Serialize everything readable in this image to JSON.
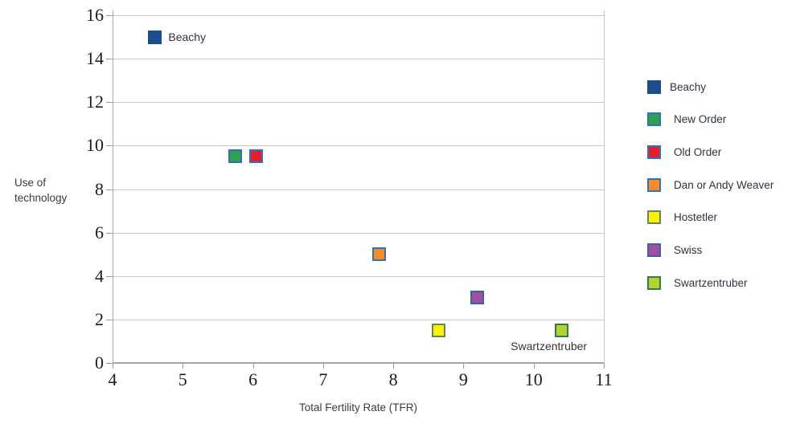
{
  "chart_data": {
    "type": "scatter",
    "title": "",
    "xlabel": "Total Fertility Rate (TFR)",
    "ylabel_lines": [
      "Use of",
      "technology"
    ],
    "xlim": [
      4,
      11
    ],
    "ylim": [
      0,
      16
    ],
    "x_ticks": [
      4,
      5,
      6,
      7,
      8,
      9,
      10,
      11
    ],
    "y_ticks": [
      0,
      2,
      4,
      6,
      8,
      10,
      12,
      14,
      16
    ],
    "grid": "horizontal-only",
    "legend_position": "right",
    "series": [
      {
        "name": "Beachy",
        "x": 4.6,
        "y": 15,
        "fill": "#1d4d8a",
        "border": "#1d4d8a",
        "label": "Beachy",
        "label_pos": "right"
      },
      {
        "name": "New Order",
        "x": 5.75,
        "y": 9.5,
        "fill": "#2da14b",
        "border": "#2e74b5"
      },
      {
        "name": "Old Order",
        "x": 6.05,
        "y": 9.5,
        "fill": "#ea1b2c",
        "border": "#2e74b5"
      },
      {
        "name": "Dan or Andy Weaver",
        "x": 7.8,
        "y": 5,
        "fill": "#f78b29",
        "border": "#2e74b5"
      },
      {
        "name": "Hostetler",
        "x": 8.65,
        "y": 1.5,
        "fill": "#fdf103",
        "border": "#64875a"
      },
      {
        "name": "Swiss",
        "x": 9.2,
        "y": 3,
        "fill": "#9f50a1",
        "border": "#3c5fa6"
      },
      {
        "name": "Swartzentruber",
        "x": 10.4,
        "y": 1.5,
        "fill": "#b3d234",
        "border": "#35784a",
        "label": "Swartzentruber",
        "label_pos": "below"
      }
    ],
    "colors": {
      "gridline": "#c9c9c9",
      "axis": "#a3a3a3",
      "tick_text": "#1c1c1c",
      "label_text": "#3c3c3c"
    }
  }
}
